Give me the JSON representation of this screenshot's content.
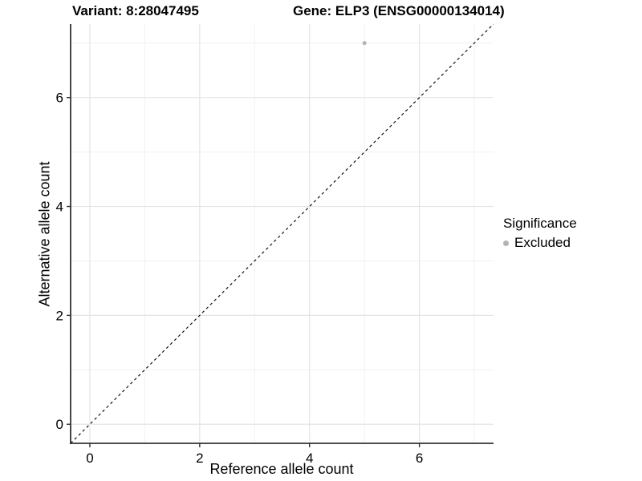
{
  "header": {
    "variant_title": "Variant: 8:28047495",
    "gene_title": "Gene: ELP3 (ENSG00000134014)"
  },
  "legend": {
    "title": "Significance",
    "items": [
      {
        "label": "Excluded",
        "color": "#b3b3b3"
      }
    ]
  },
  "chart_data": {
    "type": "scatter",
    "title": "Variant: 8:28047495 — Gene: ELP3 (ENSG00000134014)",
    "xlabel": "Reference allele count",
    "ylabel": "Alternative allele count",
    "xlim": [
      -0.35,
      7.35
    ],
    "ylim": [
      -0.35,
      7.35
    ],
    "x_ticks": [
      0,
      2,
      4,
      6
    ],
    "y_ticks": [
      0,
      2,
      4,
      6
    ],
    "x_minor_gridlines": [
      1,
      3,
      5,
      7
    ],
    "y_minor_gridlines": [
      1,
      3,
      5,
      7
    ],
    "grid": "major+minor",
    "legend_position": "right",
    "legend_title": "Significance",
    "series": [
      {
        "name": "Excluded",
        "color": "#b3b3b3",
        "marker": "circle",
        "points": [
          {
            "x": 5,
            "y": 7
          }
        ]
      }
    ],
    "reference_line": {
      "kind": "identity",
      "slope": 1,
      "intercept": 0,
      "style": "dashed",
      "color": "#000000"
    }
  },
  "style": {
    "background": "#ffffff",
    "axis_line_color": "#333333",
    "major_grid_color": "#e4e4e4",
    "minor_grid_color": "#f0f0f0",
    "point_color": "#b3b3b3"
  }
}
